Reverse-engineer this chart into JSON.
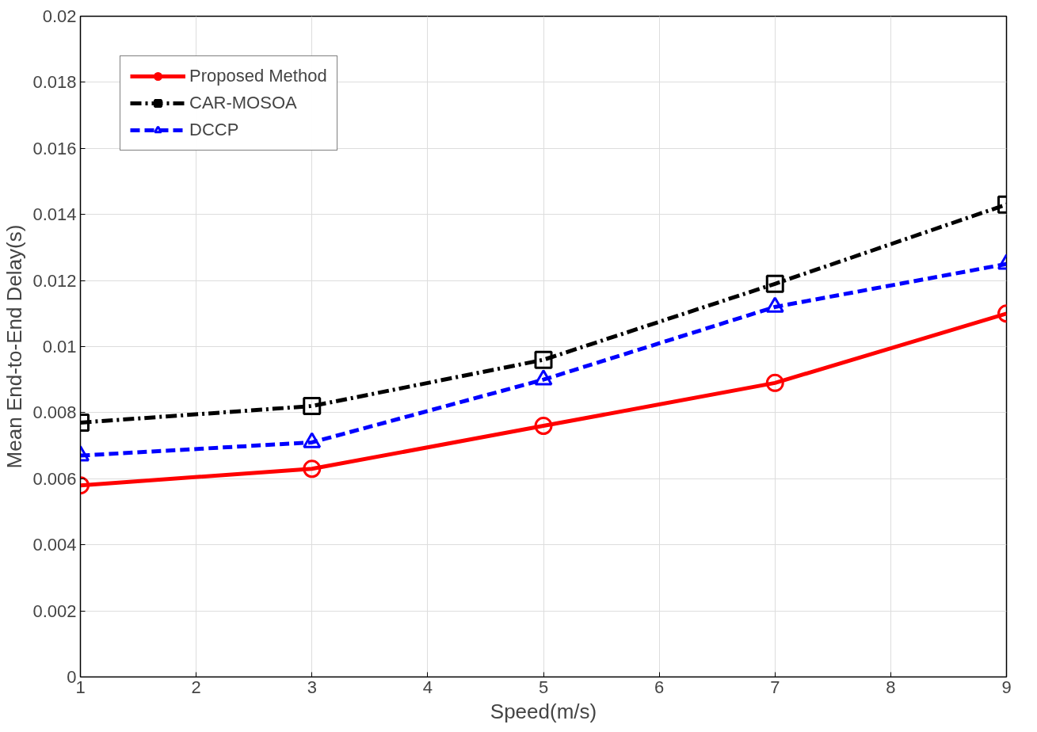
{
  "chart_data": {
    "type": "line",
    "xlabel": "Speed(m/s)",
    "ylabel": "Mean End-to-End Delay(s)",
    "x": [
      1,
      3,
      5,
      7,
      9
    ],
    "series": [
      {
        "name": "Proposed Method",
        "color": "#ff0000",
        "marker": "circle",
        "line_style": "solid",
        "values": [
          0.0058,
          0.0063,
          0.0076,
          0.0089,
          0.011
        ]
      },
      {
        "name": "CAR-MOSOA",
        "color": "#000000",
        "marker": "square",
        "line_style": "dashdot",
        "values": [
          0.0077,
          0.0082,
          0.0096,
          0.0119,
          0.0143
        ]
      },
      {
        "name": "DCCP",
        "color": "#0000ff",
        "marker": "triangle",
        "line_style": "dashed",
        "values": [
          0.0067,
          0.0071,
          0.009,
          0.0112,
          0.0125
        ]
      }
    ],
    "xlim": [
      1,
      9
    ],
    "xticks": [
      1,
      2,
      3,
      4,
      5,
      6,
      7,
      8,
      9
    ],
    "ylim": [
      0,
      0.02
    ],
    "yticks": [
      0,
      0.002,
      0.004,
      0.006,
      0.008,
      0.01,
      0.012,
      0.014,
      0.016,
      0.018,
      0.02
    ],
    "grid": true,
    "legend": "top left"
  }
}
